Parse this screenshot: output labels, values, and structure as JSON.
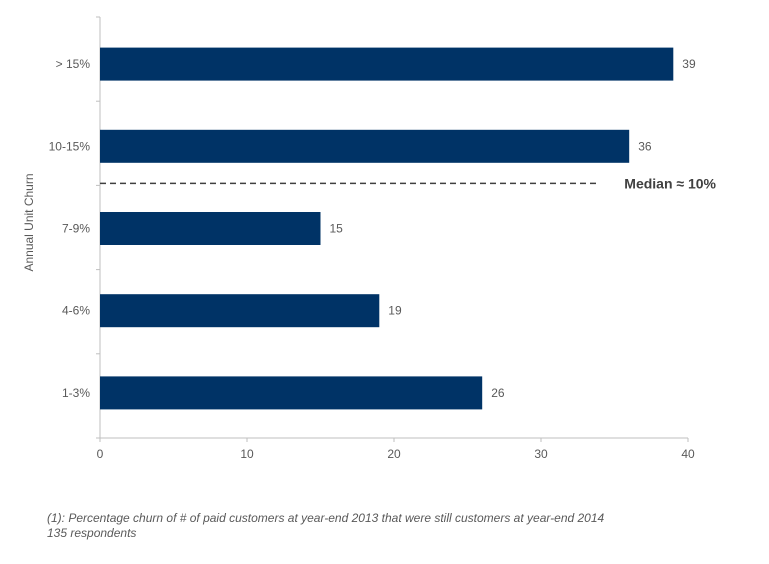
{
  "chart_data": {
    "type": "bar",
    "orientation": "horizontal",
    "categories": [
      "> 15%",
      "10-15%",
      "7-9%",
      "4-6%",
      "1-3%"
    ],
    "values": [
      39,
      36,
      15,
      19,
      26
    ],
    "title": "",
    "xlabel": "",
    "ylabel": "Annual Unit Churn",
    "xlim": [
      0,
      40
    ],
    "xticks": [
      0,
      10,
      20,
      30,
      40
    ],
    "grid": false,
    "bar_color": "#003366",
    "median_line": {
      "label": "Median ≈ 10%",
      "between_categories": [
        "10-15%",
        "7-9%"
      ],
      "style": "dashed"
    }
  },
  "footnote": {
    "line1": "(1): Percentage churn of # of paid customers at year-end 2013 that were still customers at year-end 2014",
    "line2": "135 respondents"
  }
}
